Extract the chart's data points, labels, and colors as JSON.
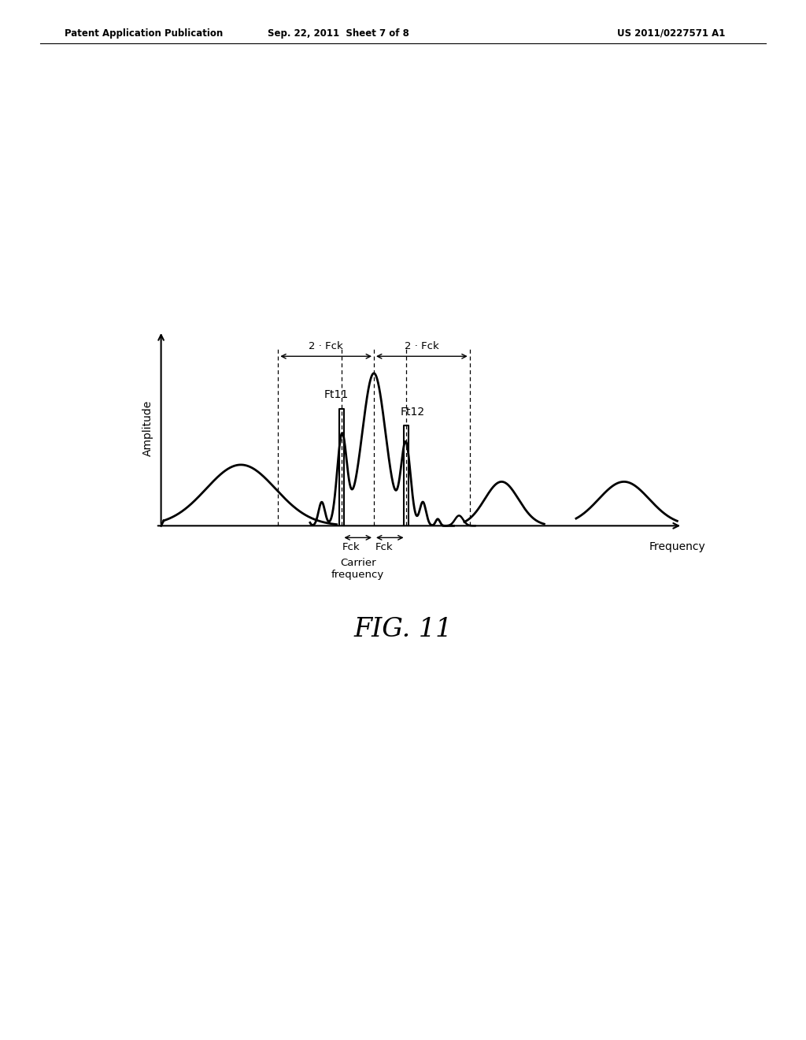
{
  "background_color": "#ffffff",
  "header_left": "Patent Application Publication",
  "header_center": "Sep. 22, 2011  Sheet 7 of 8",
  "header_right": "US 2011/0227571 A1",
  "figure_label": "FIG. 11",
  "ylabel": "Amplitude",
  "xlabel": "Frequency",
  "carrier_freq_label": "Carrier\nfrequency",
  "label_ft11": "Ft11",
  "label_ft12": "Ft12",
  "label_2fck_left": "2 · Fck",
  "label_2fck_right": "2 · Fck",
  "label_fck_left": "Fck",
  "label_fck_right": "Fck"
}
